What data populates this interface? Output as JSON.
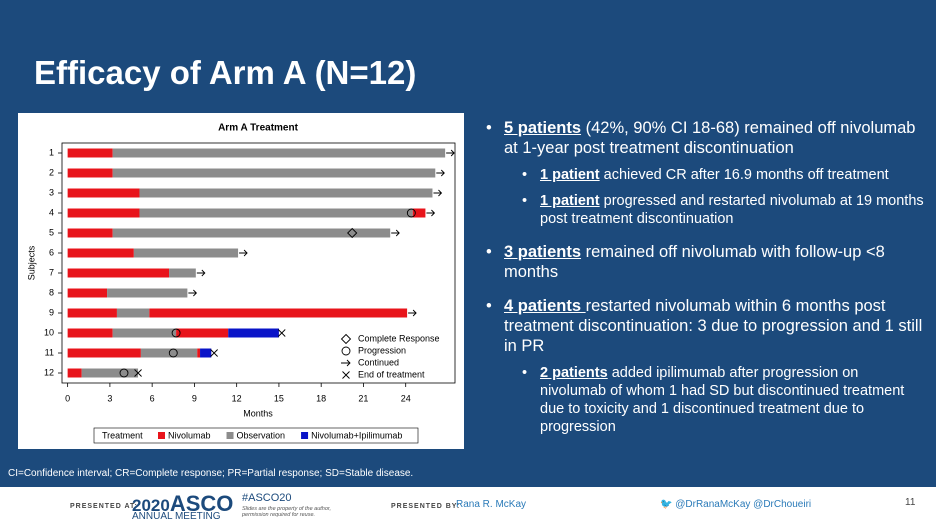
{
  "title": "Efficacy of Arm A (N=12)",
  "chart_data": {
    "type": "swimmer",
    "title": "Arm A Treatment",
    "x_label": "Months",
    "y_label": "Subjects",
    "categories": [
      "1",
      "2",
      "3",
      "4",
      "5",
      "6",
      "7",
      "8",
      "9",
      "10",
      "11",
      "12"
    ],
    "xlim": [
      -0.4,
      27.5
    ],
    "xticks": [
      0,
      3,
      6,
      9,
      12,
      15,
      18,
      21,
      24
    ],
    "legend_title": "Treatment",
    "series": [
      {
        "name": "Nivolumab",
        "color": "#e8141b"
      },
      {
        "name": "Observation",
        "color": "#8c8c8c"
      },
      {
        "name": "Nivolumab+Ipilimumab",
        "color": "#0a14c8"
      }
    ],
    "markers": [
      {
        "name": "Complete Response",
        "symbol": "diamond"
      },
      {
        "name": "Progression",
        "symbol": "circle"
      },
      {
        "name": "Continued",
        "symbol": "arrow"
      },
      {
        "name": "End of treatment",
        "symbol": "cross"
      }
    ],
    "subjects": [
      {
        "segments": [
          {
            "treatment": "Nivolumab",
            "value": 3.2
          },
          {
            "treatment": "Observation",
            "value": 23.6
          }
        ],
        "events": [
          {
            "type": "Continued",
            "x": 26.8
          }
        ]
      },
      {
        "segments": [
          {
            "treatment": "Nivolumab",
            "value": 3.2
          },
          {
            "treatment": "Observation",
            "value": 22.9
          }
        ],
        "events": [
          {
            "type": "Continued",
            "x": 26.1
          }
        ]
      },
      {
        "segments": [
          {
            "treatment": "Nivolumab",
            "value": 5.1
          },
          {
            "treatment": "Observation",
            "value": 20.8
          }
        ],
        "events": [
          {
            "type": "Continued",
            "x": 25.9
          }
        ]
      },
      {
        "segments": [
          {
            "treatment": "Nivolumab",
            "value": 5.1
          },
          {
            "treatment": "Observation",
            "value": 19.4
          },
          {
            "treatment": "Nivolumab",
            "value": 0.9
          }
        ],
        "events": [
          {
            "type": "Progression",
            "x": 24.4
          },
          {
            "type": "Continued",
            "x": 25.4
          }
        ]
      },
      {
        "segments": [
          {
            "treatment": "Nivolumab",
            "value": 3.2
          },
          {
            "treatment": "Observation",
            "value": 19.7
          }
        ],
        "events": [
          {
            "type": "Complete Response",
            "x": 20.2
          },
          {
            "type": "Continued",
            "x": 22.9
          }
        ]
      },
      {
        "segments": [
          {
            "treatment": "Nivolumab",
            "value": 4.7
          },
          {
            "treatment": "Observation",
            "value": 7.4
          }
        ],
        "events": [
          {
            "type": "Continued",
            "x": 12.1
          }
        ]
      },
      {
        "segments": [
          {
            "treatment": "Nivolumab",
            "value": 7.2
          },
          {
            "treatment": "Observation",
            "value": 1.9
          }
        ],
        "events": [
          {
            "type": "Continued",
            "x": 9.1
          }
        ]
      },
      {
        "segments": [
          {
            "treatment": "Nivolumab",
            "value": 2.8
          },
          {
            "treatment": "Observation",
            "value": 5.7
          }
        ],
        "events": [
          {
            "type": "Continued",
            "x": 8.5
          }
        ]
      },
      {
        "segments": [
          {
            "treatment": "Nivolumab",
            "value": 3.5
          },
          {
            "treatment": "Observation",
            "value": 2.3
          },
          {
            "treatment": "Nivolumab",
            "value": 18.3
          }
        ],
        "events": [
          {
            "type": "Continued",
            "x": 24.1
          }
        ]
      },
      {
        "segments": [
          {
            "treatment": "Nivolumab",
            "value": 3.2
          },
          {
            "treatment": "Observation",
            "value": 4.5
          },
          {
            "treatment": "Nivolumab",
            "value": 3.7
          },
          {
            "treatment": "Nivolumab+Ipilimumab",
            "value": 3.6
          }
        ],
        "events": [
          {
            "type": "Progression",
            "x": 7.7
          },
          {
            "type": "End of treatment",
            "x": 15.2
          }
        ]
      },
      {
        "segments": [
          {
            "treatment": "Nivolumab",
            "value": 5.2
          },
          {
            "treatment": "Observation",
            "value": 4.0
          },
          {
            "treatment": "Nivolumab",
            "value": 0.2
          },
          {
            "treatment": "Nivolumab+Ipilimumab",
            "value": 0.8
          }
        ],
        "events": [
          {
            "type": "Progression",
            "x": 7.5
          },
          {
            "type": "End of treatment",
            "x": 10.4
          }
        ]
      },
      {
        "segments": [
          {
            "treatment": "Nivolumab",
            "value": 1.0
          },
          {
            "treatment": "Observation",
            "value": 4.0
          }
        ],
        "events": [
          {
            "type": "Progression",
            "x": 4.0
          },
          {
            "type": "End of treatment",
            "x": 5.0
          }
        ]
      }
    ]
  },
  "bullets": [
    {
      "lead": "5 patients",
      "text": " (42%, 90% CI 18-68) remained off nivolumab at 1-year post treatment discontinuation",
      "sub": [
        {
          "lead": "1 patient",
          "text": " achieved CR after 16.9 months off treatment"
        },
        {
          "lead": "1 patient",
          "text": " progressed and restarted nivolumab at 19 months post treatment discontinuation"
        }
      ]
    },
    {
      "lead": "3 patients",
      "text": " remained off nivolumab with follow-up <8 months",
      "sub": []
    },
    {
      "lead": "4 patients ",
      "text": "restarted nivolumab within 6 months post treatment discontinuation: 3 due to progression and 1 still in PR",
      "sub": [
        {
          "lead": "2 patients",
          "text": " added ipilimumab after progression on nivolumab of whom 1 had SD but discontinued treatment due to toxicity and 1 discontinued treatment due to progression"
        }
      ]
    }
  ],
  "footnote": "CI=Confidence interval; CR=Complete response; PR=Partial response; SD=Stable disease.",
  "footer": {
    "presented_at": "PRESENTED AT:",
    "logo_year": "2020",
    "logo_name": "ASCO",
    "logo_sub": "ANNUAL MEETING",
    "hashtag": "#ASCO20",
    "disclaimer": "Slides are the property of the author, permission required for reuse.",
    "presented_by": "PRESENTED BY:",
    "presenter": "Rana R. McKay",
    "handles": "@DrRanaMcKay @DrChoueiri",
    "page": "11"
  }
}
